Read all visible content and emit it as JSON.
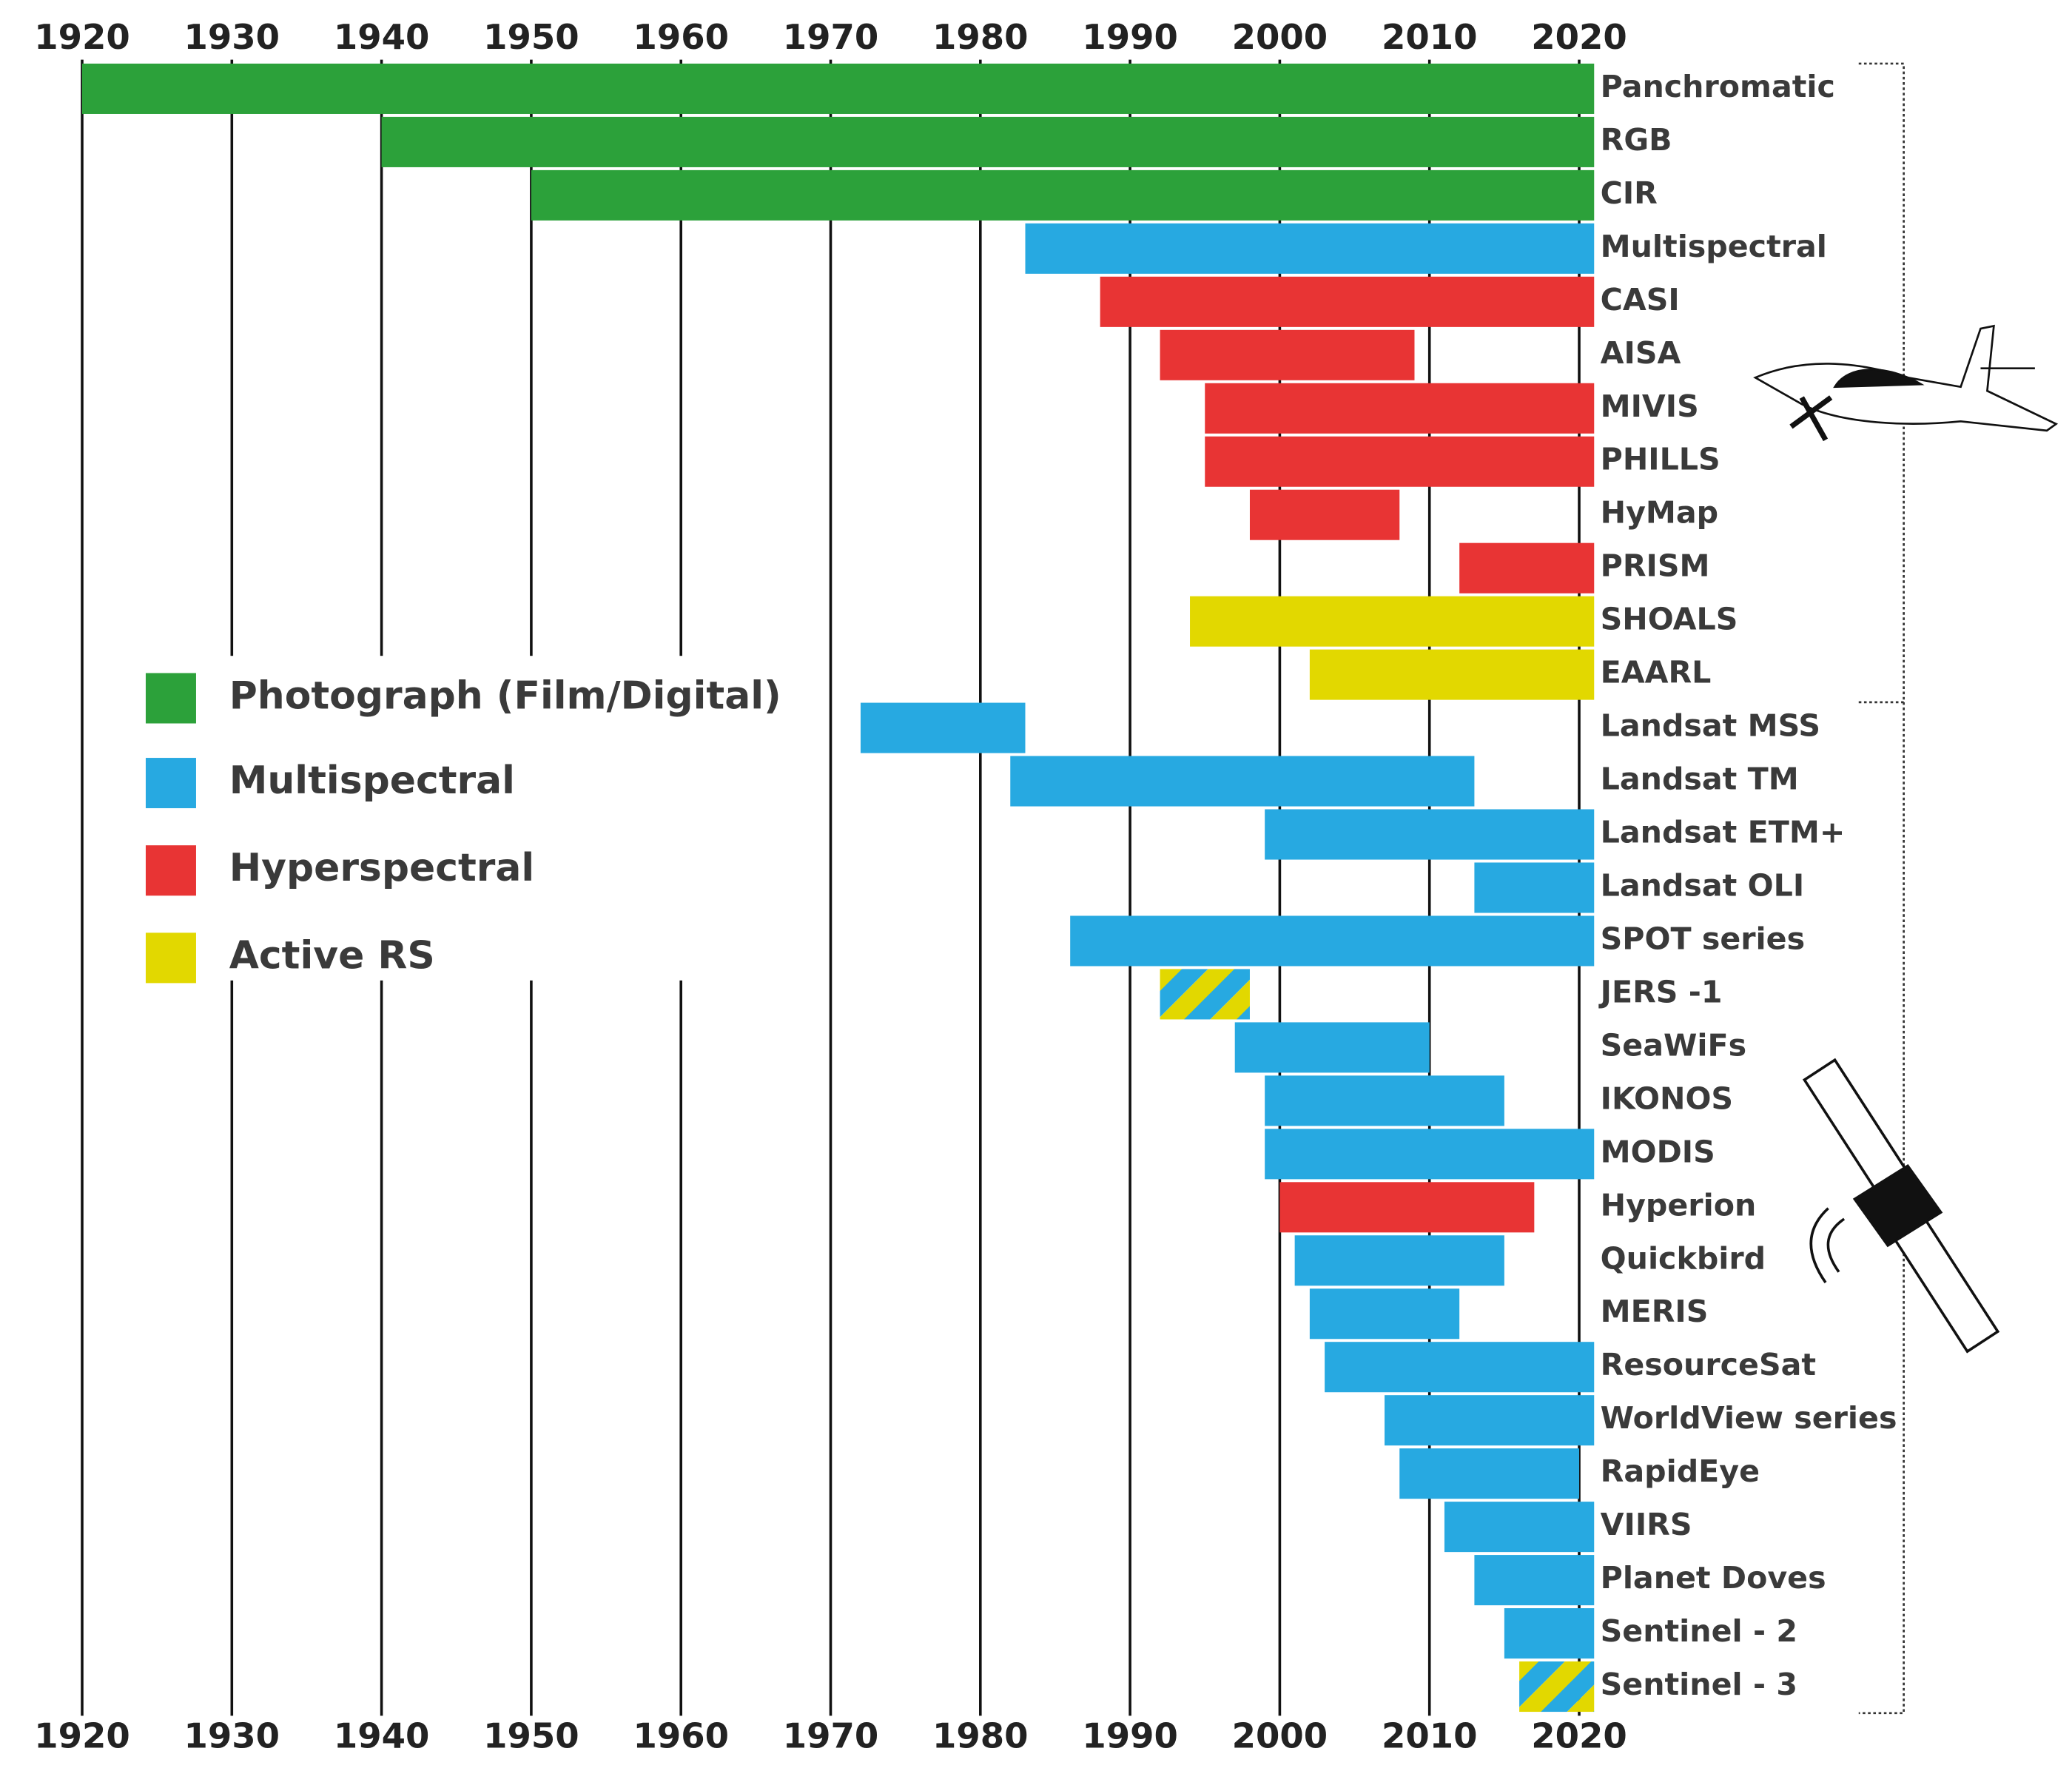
{
  "chart_data": {
    "type": "timeline",
    "groups": [
      {
        "name": "Photograph (Film/Digital)",
        "color": "#2ca13a"
      },
      {
        "name": "Multispectral",
        "color": "#27a9e1"
      },
      {
        "name": "Hyperspectral",
        "color": "#e83434"
      },
      {
        "name": "Active RS",
        "color": "#e2d800"
      }
    ],
    "xlim": [
      1920,
      2020
    ],
    "xticks": [
      1920,
      1930,
      1940,
      1950,
      1960,
      1970,
      1980,
      1990,
      2000,
      2010,
      2020
    ],
    "bars": [
      {
        "name": "Panchromatic",
        "group": 0,
        "start": 1920,
        "end": 2021
      },
      {
        "name": "RGB",
        "group": 0,
        "start": 1940,
        "end": 2021
      },
      {
        "name": "CIR",
        "group": 0,
        "start": 1950,
        "end": 2021
      },
      {
        "name": "Multispectral",
        "group": 1,
        "start": 1983,
        "end": 2021
      },
      {
        "name": "CASI",
        "group": 2,
        "start": 1988,
        "end": 2021
      },
      {
        "name": "AISA",
        "group": 2,
        "start": 1992,
        "end": 2009
      },
      {
        "name": "MIVIS",
        "group": 2,
        "start": 1995,
        "end": 2021
      },
      {
        "name": "PHILLS",
        "group": 2,
        "start": 1995,
        "end": 2021
      },
      {
        "name": "HyMap",
        "group": 2,
        "start": 1998,
        "end": 2008
      },
      {
        "name": "PRISM",
        "group": 2,
        "start": 2012,
        "end": 2021
      },
      {
        "name": "SHOALS",
        "group": 3,
        "start": 1994,
        "end": 2021
      },
      {
        "name": "EAARL",
        "group": 3,
        "start": 2002,
        "end": 2021
      },
      {
        "name": "Landsat MSS",
        "group": 1,
        "start": 1972,
        "end": 1983
      },
      {
        "name": "Landsat TM",
        "group": 1,
        "start": 1982,
        "end": 2013
      },
      {
        "name": "Landsat ETM+",
        "group": 1,
        "start": 1999,
        "end": 2021
      },
      {
        "name": "Landsat OLI",
        "group": 1,
        "start": 2013,
        "end": 2021
      },
      {
        "name": "SPOT series",
        "group": 1,
        "start": 1986,
        "end": 2021
      },
      {
        "name": "JERS -1",
        "group": [
          1,
          3
        ],
        "start": 1992,
        "end": 1998
      },
      {
        "name": "SeaWiFs",
        "group": 1,
        "start": 1997,
        "end": 2010
      },
      {
        "name": "IKONOS",
        "group": 1,
        "start": 1999,
        "end": 2015
      },
      {
        "name": "MODIS",
        "group": 1,
        "start": 1999,
        "end": 2021
      },
      {
        "name": "Hyperion",
        "group": 2,
        "start": 2000,
        "end": 2017
      },
      {
        "name": "Quickbird",
        "group": 1,
        "start": 2001,
        "end": 2015
      },
      {
        "name": "MERIS",
        "group": 1,
        "start": 2002,
        "end": 2012
      },
      {
        "name": "ResourceSat",
        "group": 1,
        "start": 2003,
        "end": 2021
      },
      {
        "name": "WorldView series",
        "group": 1,
        "start": 2007,
        "end": 2021
      },
      {
        "name": "RapidEye",
        "group": 1,
        "start": 2008,
        "end": 2020
      },
      {
        "name": "VIIRS",
        "group": 1,
        "start": 2011,
        "end": 2021
      },
      {
        "name": "Planet Doves",
        "group": 1,
        "start": 2013,
        "end": 2021
      },
      {
        "name": "Sentinel - 2",
        "group": 1,
        "start": 2015,
        "end": 2021
      },
      {
        "name": "Sentinel - 3",
        "group": [
          1,
          3
        ],
        "start": 2016,
        "end": 2021
      }
    ]
  }
}
